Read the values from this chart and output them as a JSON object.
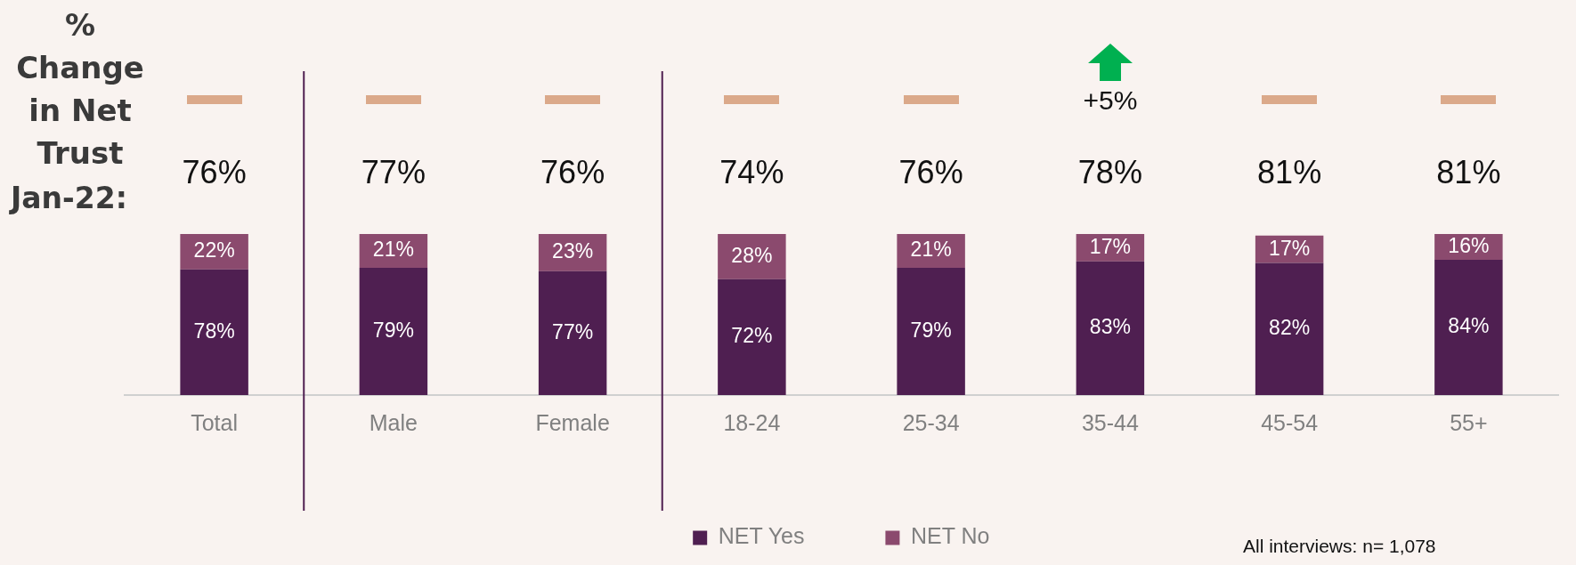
{
  "chart_data": {
    "type": "bar",
    "stacked": true,
    "legend": "bottom",
    "grid": false,
    "categories": [
      "Total",
      "Male",
      "Female",
      "18-24",
      "25-34",
      "35-44",
      "45-54",
      "55+"
    ],
    "series": [
      {
        "name": "NET Yes",
        "color": "#4f1f51",
        "values": [
          78,
          79,
          77,
          72,
          79,
          83,
          82,
          84
        ],
        "value_labels": [
          "78%",
          "79%",
          "77%",
          "72%",
          "79%",
          "83%",
          "82%",
          "84%"
        ]
      },
      {
        "name": "NET No",
        "color": "#8b4a6e",
        "values": [
          22,
          21,
          23,
          28,
          21,
          17,
          17,
          16
        ],
        "value_labels": [
          "22%",
          "21%",
          "23%",
          "28%",
          "21%",
          "17%",
          "17%",
          "16%"
        ]
      }
    ],
    "annotations": [
      "% Change in Net Trust",
      "Jan-22:",
      "76%",
      "77%",
      "76%",
      "74%",
      "76%",
      "78%",
      "81%",
      "81%",
      "+5%",
      "All interviews: n= 1,078"
    ]
  }
}
